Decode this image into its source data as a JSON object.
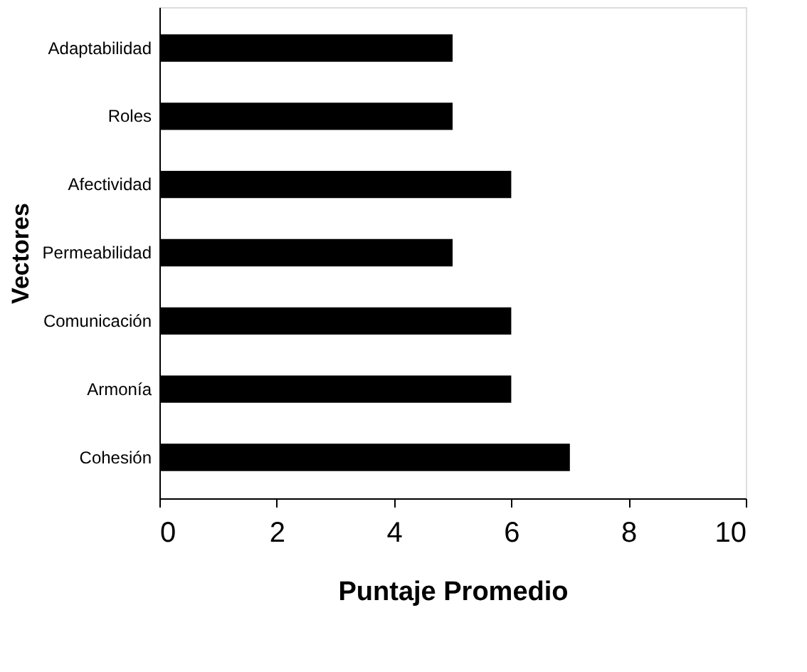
{
  "chart_data": {
    "type": "bar",
    "orientation": "horizontal",
    "xlabel": "Puntaje Promedio",
    "ylabel": "Vectores",
    "categories": [
      "Adaptabilidad",
      "Roles",
      "Afectividad",
      "Permeabilidad",
      "Comunicación",
      "Armonía",
      "Cohesión"
    ],
    "values": [
      5,
      5,
      6,
      5,
      6,
      6,
      7
    ],
    "color": "#000000",
    "xlim": [
      0,
      10
    ],
    "xticks": [
      0,
      2,
      4,
      6,
      8,
      10
    ],
    "grid": false
  }
}
